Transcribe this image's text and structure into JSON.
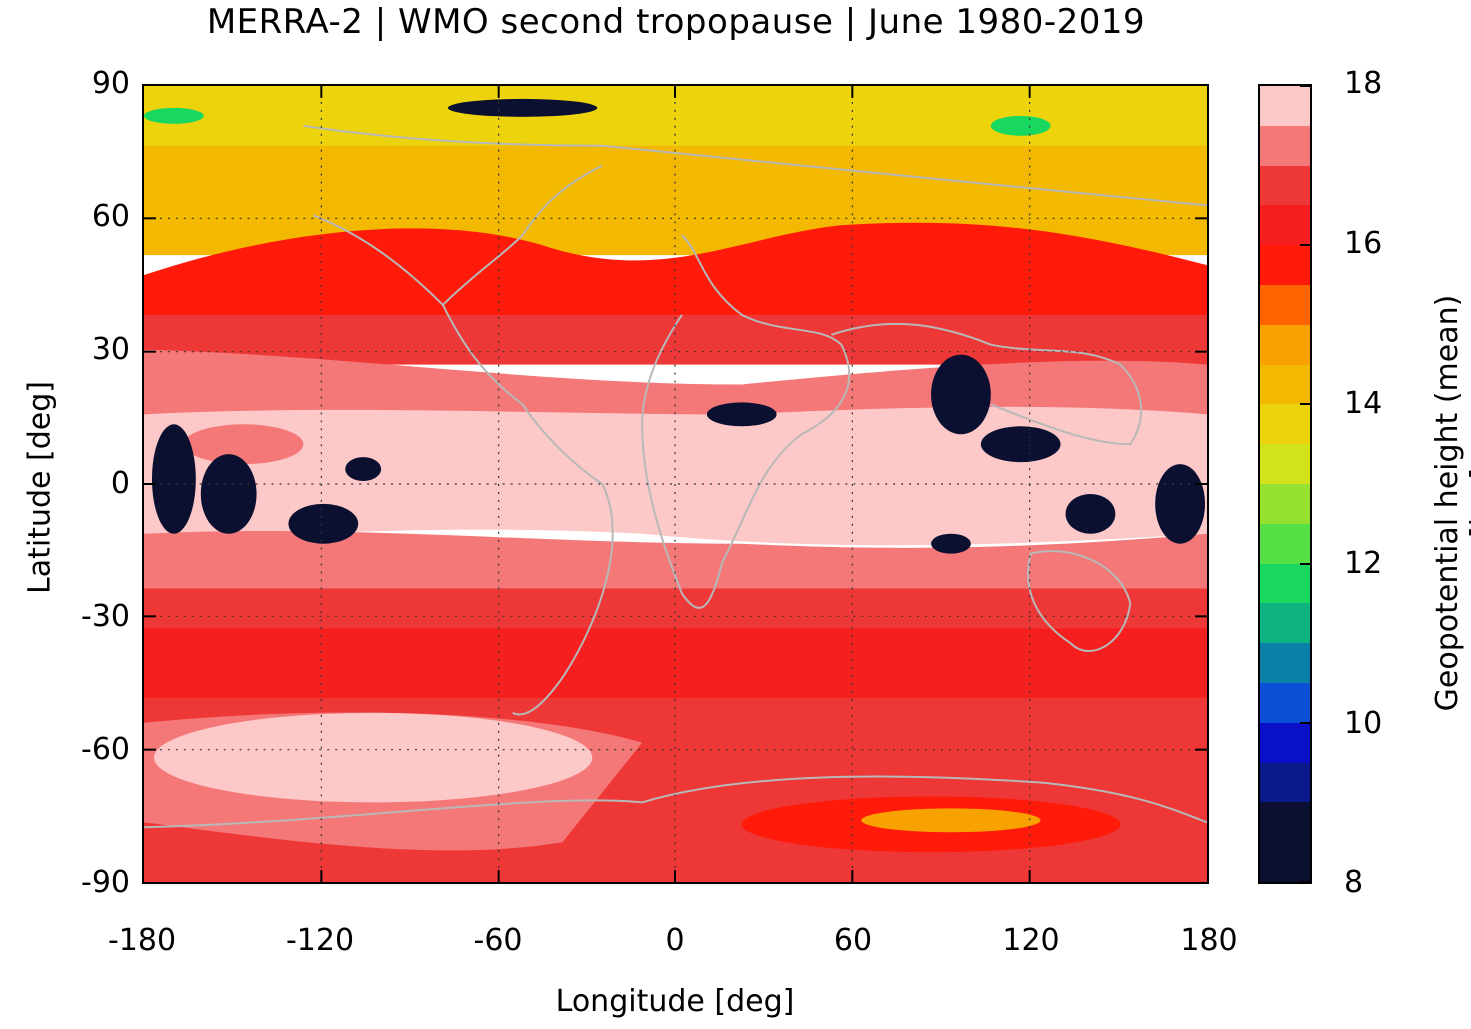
{
  "title": "MERRA-2 | WMO second tropopause | June 1980-2019",
  "colors": {
    "palette": [
      "#0b1030",
      "#0a1a8a",
      "#0a10c8",
      "#0b4fd6",
      "#0a7fa8",
      "#0db481",
      "#19d85f",
      "#55e045",
      "#96e030",
      "#d2e21b",
      "#ecd30b",
      "#f3b800",
      "#f7a200",
      "#ff6400",
      "#ff1a0a",
      "#f51f1f",
      "#ee3737",
      "#f47878",
      "#fdc8c8"
    ],
    "coastline": "#b8b8b8",
    "grid": "#333333"
  },
  "chart_data": {
    "type": "heatmap",
    "title": "MERRA-2 | WMO second tropopause | June 1980-2019",
    "xlabel": "Longitude [deg]",
    "ylabel": "Latitude [deg]",
    "xlim": [
      -180,
      180
    ],
    "ylim": [
      -90,
      90
    ],
    "xticks": [
      "-180",
      "-120",
      "-60",
      "0",
      "60",
      "120",
      "180"
    ],
    "yticks": [
      "90",
      "60",
      "30",
      "0",
      "-30",
      "-60",
      "-90"
    ],
    "grid": true,
    "colorbar": {
      "label": "Geopotential height (mean) [km]",
      "range": [
        8,
        18
      ],
      "levels": 20,
      "ticks": [
        "18",
        "16",
        "14",
        "12",
        "10",
        "8"
      ]
    },
    "zonal_bands_km": [
      {
        "lat": [
          75,
          90
        ],
        "value_km": 13.8
      },
      {
        "lat": [
          60,
          75
        ],
        "value_km": 14.5
      },
      {
        "lat": [
          50,
          60
        ],
        "value_km": 15.2
      },
      {
        "lat": [
          40,
          50
        ],
        "value_km": 16.2
      },
      {
        "lat": [
          30,
          40
        ],
        "value_km": 16.7
      },
      {
        "lat": [
          20,
          30
        ],
        "value_km": 17.2
      },
      {
        "lat": [
          -15,
          20
        ],
        "value_km": 17.8
      },
      {
        "lat": [
          -25,
          -15
        ],
        "value_km": 17.3
      },
      {
        "lat": [
          -45,
          -25
        ],
        "value_km": 16.3
      },
      {
        "lat": [
          -55,
          -45
        ],
        "value_km": 16.7
      },
      {
        "lat": [
          -70,
          -55
        ],
        "value_km": 17.8
      },
      {
        "lat": [
          -90,
          -70
        ],
        "value_km": 17.2
      }
    ]
  }
}
